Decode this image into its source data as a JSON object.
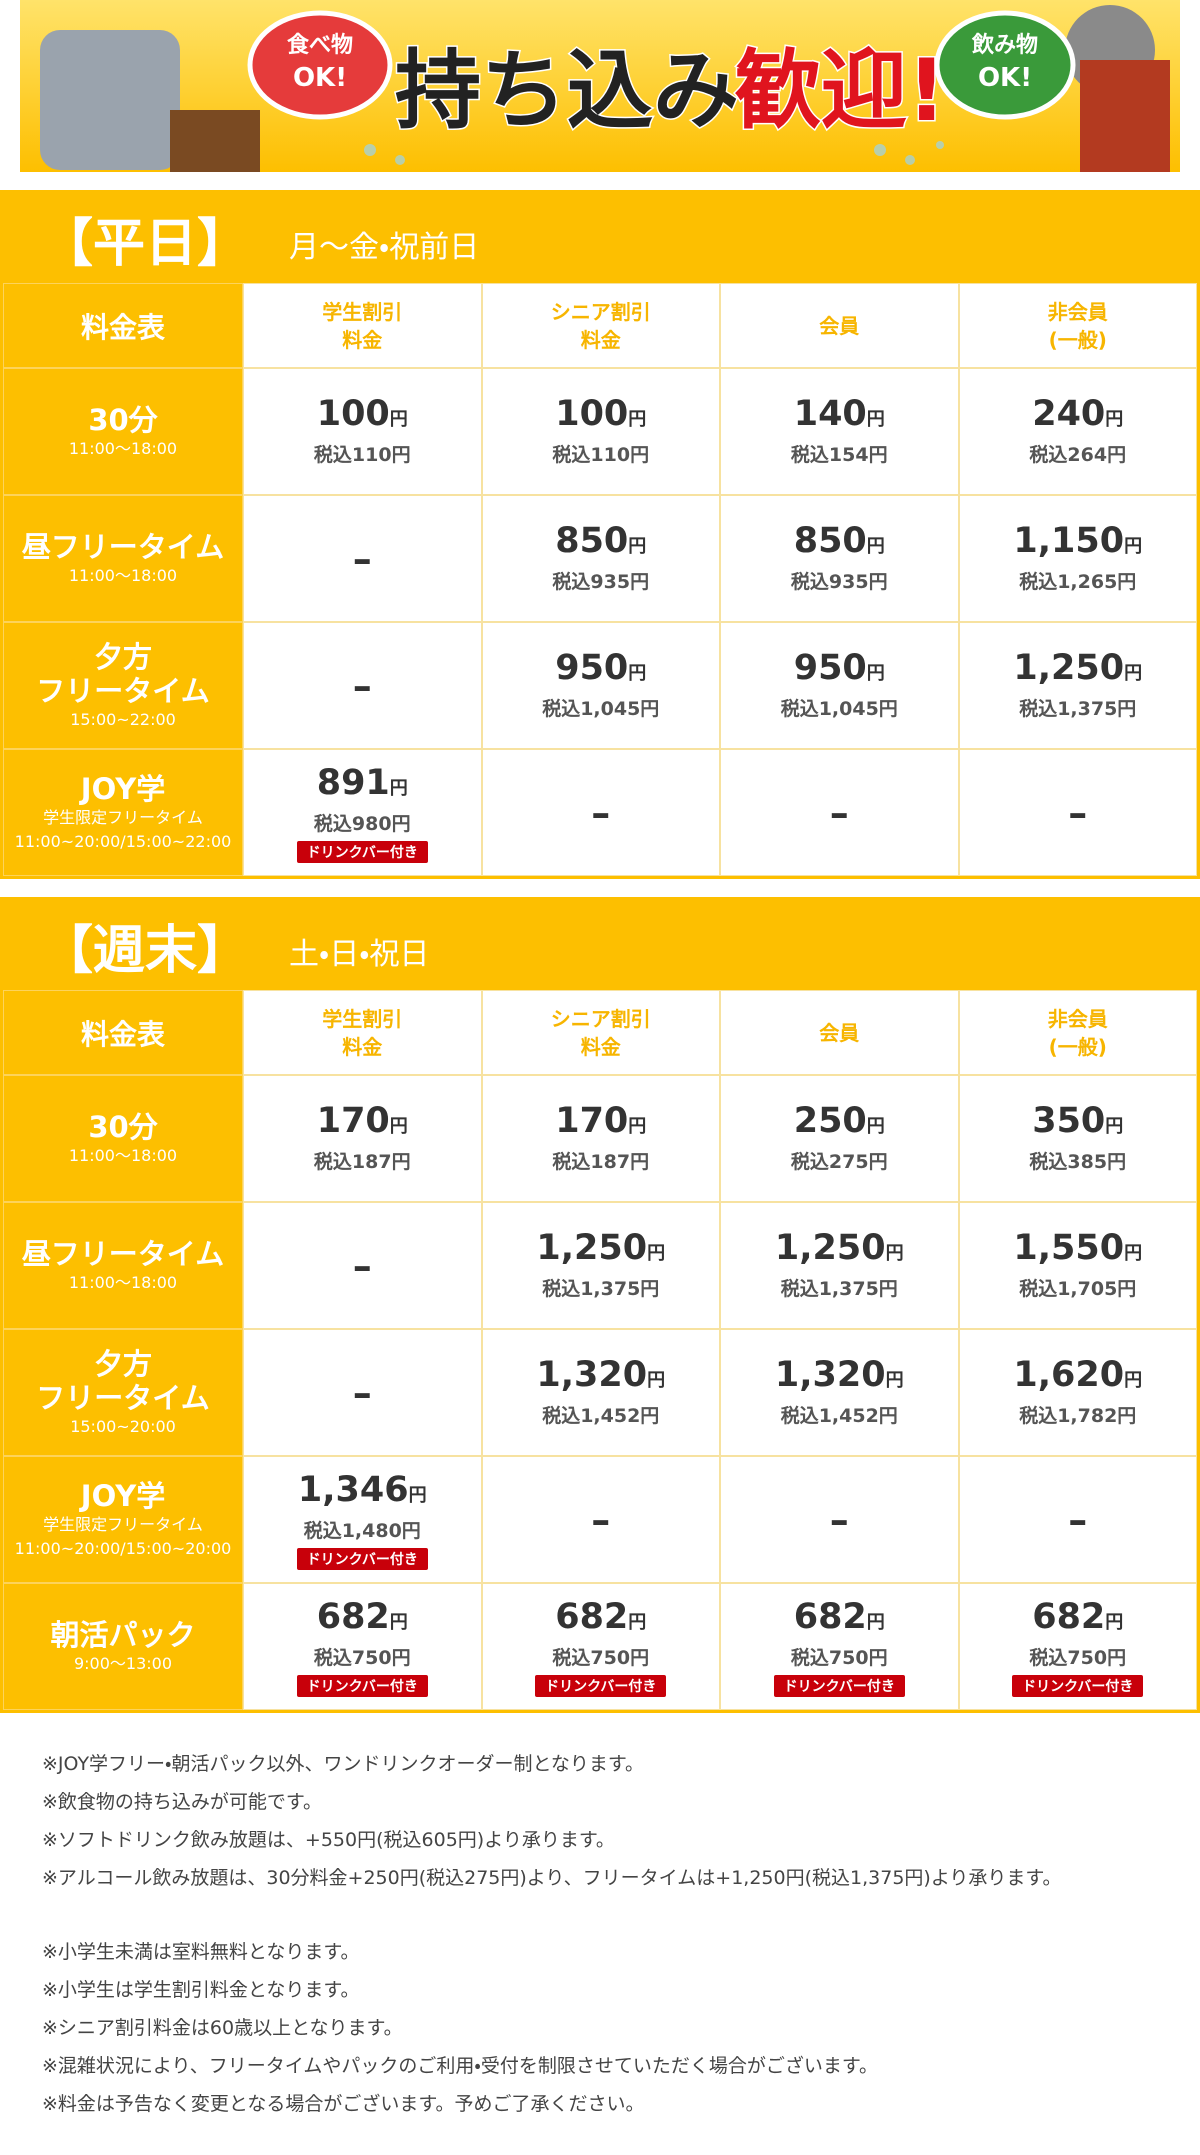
{
  "banner": {
    "food": [
      "食べ物",
      "OK!"
    ],
    "title_a": "持ち込み",
    "title_b": "歓迎!",
    "drink": [
      "飲み物",
      "OK!"
    ]
  },
  "tables": [
    {
      "title": "【平日】",
      "subtitle": "月～金・祝前日",
      "corner": "料金表",
      "columns": [
        [
          "学生割引",
          "料金"
        ],
        [
          "シニア割引",
          "料金"
        ],
        [
          "会員"
        ],
        [
          "非会員",
          "(一般)"
        ]
      ],
      "rows": [
        {
          "name": [
            "30分"
          ],
          "sub": [
            "11:00～18:00"
          ],
          "cells": [
            {
              "price": "100",
              "unit": "円",
              "tax": "税込110円"
            },
            {
              "price": "100",
              "unit": "円",
              "tax": "税込110円"
            },
            {
              "price": "140",
              "unit": "円",
              "tax": "税込154円"
            },
            {
              "price": "240",
              "unit": "円",
              "tax": "税込264円"
            }
          ]
        },
        {
          "name": [
            "昼フリータイム"
          ],
          "sub": [
            "11:00～18:00"
          ],
          "cells": [
            "–",
            {
              "price": "850",
              "unit": "円",
              "tax": "税込935円"
            },
            {
              "price": "850",
              "unit": "円",
              "tax": "税込935円"
            },
            {
              "price": "1,150",
              "unit": "円",
              "tax": "税込1,265円"
            }
          ]
        },
        {
          "name": [
            "夕方",
            "フリータイム"
          ],
          "sub": [
            "15:00~22:00"
          ],
          "cells": [
            "–",
            {
              "price": "950",
              "unit": "円",
              "tax": "税込1,045円"
            },
            {
              "price": "950",
              "unit": "円",
              "tax": "税込1,045円"
            },
            {
              "price": "1,250",
              "unit": "円",
              "tax": "税込1,375円"
            }
          ]
        },
        {
          "name": [
            "JOY学"
          ],
          "sub": [
            "学生限定フリータイム",
            "11:00~20:00/15:00~22:00"
          ],
          "cells": [
            {
              "price": "891",
              "unit": "円",
              "tax": "税込980円",
              "badge": "ドリンクバー付き"
            },
            "–",
            "–",
            "–"
          ]
        }
      ]
    },
    {
      "title": "【週末】",
      "subtitle": "土・日・祝日",
      "corner": "料金表",
      "columns": [
        [
          "学生割引",
          "料金"
        ],
        [
          "シニア割引",
          "料金"
        ],
        [
          "会員"
        ],
        [
          "非会員",
          "(一般)"
        ]
      ],
      "rows": [
        {
          "name": [
            "30分"
          ],
          "sub": [
            "11:00～18:00"
          ],
          "cells": [
            {
              "price": "170",
              "unit": "円",
              "tax": "税込187円"
            },
            {
              "price": "170",
              "unit": "円",
              "tax": "税込187円"
            },
            {
              "price": "250",
              "unit": "円",
              "tax": "税込275円"
            },
            {
              "price": "350",
              "unit": "円",
              "tax": "税込385円"
            }
          ]
        },
        {
          "name": [
            "昼フリータイム"
          ],
          "sub": [
            "11:00～18:00"
          ],
          "cells": [
            "–",
            {
              "price": "1,250",
              "unit": "円",
              "tax": "税込1,375円"
            },
            {
              "price": "1,250",
              "unit": "円",
              "tax": "税込1,375円"
            },
            {
              "price": "1,550",
              "unit": "円",
              "tax": "税込1,705円"
            }
          ]
        },
        {
          "name": [
            "夕方",
            "フリータイム"
          ],
          "sub": [
            "15:00~20:00"
          ],
          "cells": [
            "–",
            {
              "price": "1,320",
              "unit": "円",
              "tax": "税込1,452円"
            },
            {
              "price": "1,320",
              "unit": "円",
              "tax": "税込1,452円"
            },
            {
              "price": "1,620",
              "unit": "円",
              "tax": "税込1,782円"
            }
          ]
        },
        {
          "name": [
            "JOY学"
          ],
          "sub": [
            "学生限定フリータイム",
            "11:00~20:00/15:00~20:00"
          ],
          "cells": [
            {
              "price": "1,346",
              "unit": "円",
              "tax": "税込1,480円",
              "badge": "ドリンクバー付き"
            },
            "–",
            "–",
            "–"
          ]
        },
        {
          "name": [
            "朝活パック"
          ],
          "sub": [
            "9:00～13:00"
          ],
          "cells": [
            {
              "price": "682",
              "unit": "円",
              "tax": "税込750円",
              "badge": "ドリンクバー付き"
            },
            {
              "price": "682",
              "unit": "円",
              "tax": "税込750円",
              "badge": "ドリンクバー付き"
            },
            {
              "price": "682",
              "unit": "円",
              "tax": "税込750円",
              "badge": "ドリンクバー付き"
            },
            {
              "price": "682",
              "unit": "円",
              "tax": "税込750円",
              "badge": "ドリンクバー付き"
            }
          ]
        }
      ]
    }
  ],
  "notes": [
    [
      "※JOY学フリー・朝活パック以外、ワンドリンクオーダー制となります。",
      "※飲食物の持ち込みが可能です。",
      "※ソフトドリンク飲み放題は、+550円(税込605円)より承ります。",
      "※アルコール飲み放題は、30分料金+250円(税込275円)より、フリータイムは+1,250円(税込1,375円)より承ります。"
    ],
    [
      "※小学生未満は室料無料となります。",
      "※小学生は学生割引料金となります。",
      "※シニア割引料金は60歳以上となります。",
      "※混雑状況により、フリータイムやパックのご利用・受付を制限させていただく場合がございます。",
      "※料金は予告なく変更となる場合がございます。予めご了承ください。"
    ]
  ]
}
